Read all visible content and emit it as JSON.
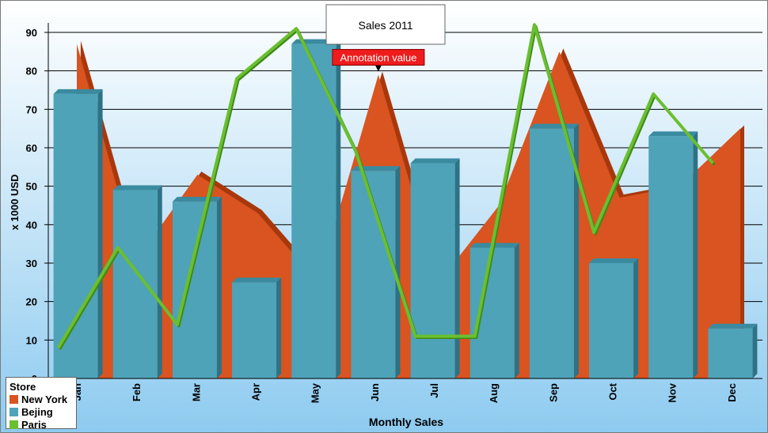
{
  "chart_data": {
    "type": "bar",
    "title": "Sales 2011",
    "xlabel": "Monthly Sales",
    "ylabel": "x 1000 USD",
    "ylim": [
      0,
      90
    ],
    "yticks": [
      0,
      10,
      20,
      30,
      40,
      50,
      60,
      70,
      80,
      90
    ],
    "categories": [
      "Jan",
      "Feb",
      "Mar",
      "Apr",
      "May",
      "Jun",
      "Jul",
      "Aug",
      "Sep",
      "Oct",
      "Nov",
      "Dec"
    ],
    "series": [
      {
        "name": "New York",
        "type": "area",
        "color": "#d95420",
        "values": [
          87,
          31,
          53,
          43,
          25,
          79,
          25,
          45,
          85,
          47,
          50,
          65
        ]
      },
      {
        "name": "Bejing",
        "type": "bar",
        "color": "#4ea3b8",
        "values": [
          74,
          49,
          46,
          25,
          87,
          54,
          56,
          34,
          65,
          30,
          63,
          13
        ]
      },
      {
        "name": "Paris",
        "type": "line",
        "color": "#6abf30",
        "values": [
          8,
          34,
          14,
          78,
          91,
          59,
          11,
          11,
          92,
          38,
          74,
          56
        ]
      }
    ],
    "annotation": {
      "text": "Annotation value",
      "category": "Jun",
      "value": 79
    },
    "grid": true,
    "legend_title": "Store",
    "legend_position": "bottom-left"
  }
}
